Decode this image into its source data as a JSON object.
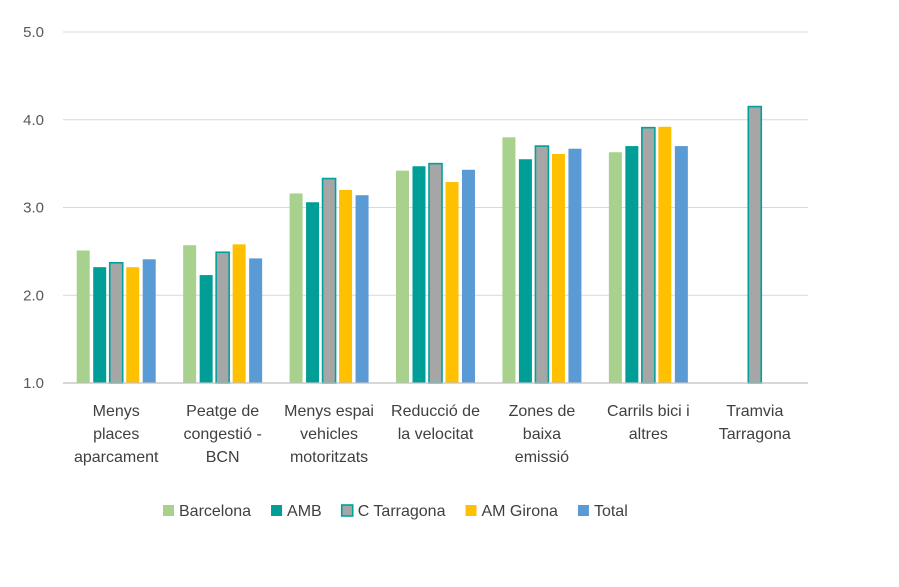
{
  "chart_data": {
    "type": "bar",
    "title": "",
    "xlabel": "",
    "ylabel": "",
    "ylim": [
      1.0,
      5.0
    ],
    "yticks": [
      "1.0",
      "2.0",
      "3.0",
      "4.0",
      "5.0"
    ],
    "grid": true,
    "legend_position": "bottom",
    "categories": [
      [
        "Menys",
        "places",
        "aparcament"
      ],
      [
        "Peatge de",
        "congestió -",
        "BCN"
      ],
      [
        "Menys espai",
        "vehicles",
        "motoritzats"
      ],
      [
        "Reducció de",
        "la velocitat"
      ],
      [
        "Zones de",
        "baixa",
        "emissió"
      ],
      [
        "Carrils bici i",
        "altres"
      ],
      [
        "Tramvia",
        "Tarragona"
      ]
    ],
    "series": [
      {
        "name": "Barcelona",
        "color": "#a9d18e",
        "outline": "",
        "values": [
          2.51,
          2.57,
          3.16,
          3.42,
          3.8,
          3.63,
          null
        ]
      },
      {
        "name": "AMB",
        "color": "#009e96",
        "outline": "",
        "values": [
          2.32,
          2.23,
          3.06,
          3.47,
          3.55,
          3.7,
          null
        ]
      },
      {
        "name": "C Tarragona",
        "color": "#a6a6a6",
        "outline": "#00a19a",
        "values": [
          2.37,
          2.49,
          3.33,
          3.5,
          3.7,
          3.91,
          4.15
        ]
      },
      {
        "name": "AM Girona",
        "color": "#ffc000",
        "outline": "",
        "values": [
          2.32,
          2.58,
          3.2,
          3.29,
          3.61,
          3.92,
          null
        ]
      },
      {
        "name": "Total",
        "color": "#5b9bd5",
        "outline": "",
        "values": [
          2.41,
          2.42,
          3.14,
          3.43,
          3.67,
          3.7,
          null
        ]
      }
    ]
  }
}
